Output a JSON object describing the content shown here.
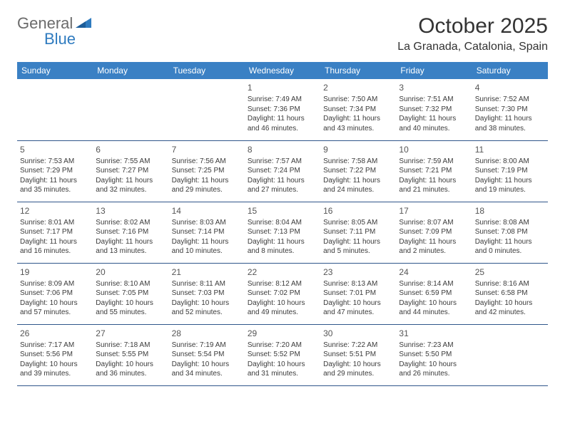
{
  "logo": {
    "text1": "General",
    "text2": "Blue"
  },
  "title": "October 2025",
  "subtitle": "La Granada, Catalonia, Spain",
  "colors": {
    "header_bg": "#3a80c4",
    "header_text": "#ffffff",
    "rule": "#2f568a",
    "logo_gray": "#6b6b6b",
    "logo_blue": "#2f7bbf",
    "body_text": "#3b3b3b"
  },
  "dow": [
    "Sunday",
    "Monday",
    "Tuesday",
    "Wednesday",
    "Thursday",
    "Friday",
    "Saturday"
  ],
  "weeks": [
    [
      null,
      null,
      null,
      {
        "n": "1",
        "sr": "7:49 AM",
        "ss": "7:36 PM",
        "dl": "11 hours and 46 minutes."
      },
      {
        "n": "2",
        "sr": "7:50 AM",
        "ss": "7:34 PM",
        "dl": "11 hours and 43 minutes."
      },
      {
        "n": "3",
        "sr": "7:51 AM",
        "ss": "7:32 PM",
        "dl": "11 hours and 40 minutes."
      },
      {
        "n": "4",
        "sr": "7:52 AM",
        "ss": "7:30 PM",
        "dl": "11 hours and 38 minutes."
      }
    ],
    [
      {
        "n": "5",
        "sr": "7:53 AM",
        "ss": "7:29 PM",
        "dl": "11 hours and 35 minutes."
      },
      {
        "n": "6",
        "sr": "7:55 AM",
        "ss": "7:27 PM",
        "dl": "11 hours and 32 minutes."
      },
      {
        "n": "7",
        "sr": "7:56 AM",
        "ss": "7:25 PM",
        "dl": "11 hours and 29 minutes."
      },
      {
        "n": "8",
        "sr": "7:57 AM",
        "ss": "7:24 PM",
        "dl": "11 hours and 27 minutes."
      },
      {
        "n": "9",
        "sr": "7:58 AM",
        "ss": "7:22 PM",
        "dl": "11 hours and 24 minutes."
      },
      {
        "n": "10",
        "sr": "7:59 AM",
        "ss": "7:21 PM",
        "dl": "11 hours and 21 minutes."
      },
      {
        "n": "11",
        "sr": "8:00 AM",
        "ss": "7:19 PM",
        "dl": "11 hours and 19 minutes."
      }
    ],
    [
      {
        "n": "12",
        "sr": "8:01 AM",
        "ss": "7:17 PM",
        "dl": "11 hours and 16 minutes."
      },
      {
        "n": "13",
        "sr": "8:02 AM",
        "ss": "7:16 PM",
        "dl": "11 hours and 13 minutes."
      },
      {
        "n": "14",
        "sr": "8:03 AM",
        "ss": "7:14 PM",
        "dl": "11 hours and 10 minutes."
      },
      {
        "n": "15",
        "sr": "8:04 AM",
        "ss": "7:13 PM",
        "dl": "11 hours and 8 minutes."
      },
      {
        "n": "16",
        "sr": "8:05 AM",
        "ss": "7:11 PM",
        "dl": "11 hours and 5 minutes."
      },
      {
        "n": "17",
        "sr": "8:07 AM",
        "ss": "7:09 PM",
        "dl": "11 hours and 2 minutes."
      },
      {
        "n": "18",
        "sr": "8:08 AM",
        "ss": "7:08 PM",
        "dl": "11 hours and 0 minutes."
      }
    ],
    [
      {
        "n": "19",
        "sr": "8:09 AM",
        "ss": "7:06 PM",
        "dl": "10 hours and 57 minutes."
      },
      {
        "n": "20",
        "sr": "8:10 AM",
        "ss": "7:05 PM",
        "dl": "10 hours and 55 minutes."
      },
      {
        "n": "21",
        "sr": "8:11 AM",
        "ss": "7:03 PM",
        "dl": "10 hours and 52 minutes."
      },
      {
        "n": "22",
        "sr": "8:12 AM",
        "ss": "7:02 PM",
        "dl": "10 hours and 49 minutes."
      },
      {
        "n": "23",
        "sr": "8:13 AM",
        "ss": "7:01 PM",
        "dl": "10 hours and 47 minutes."
      },
      {
        "n": "24",
        "sr": "8:14 AM",
        "ss": "6:59 PM",
        "dl": "10 hours and 44 minutes."
      },
      {
        "n": "25",
        "sr": "8:16 AM",
        "ss": "6:58 PM",
        "dl": "10 hours and 42 minutes."
      }
    ],
    [
      {
        "n": "26",
        "sr": "7:17 AM",
        "ss": "5:56 PM",
        "dl": "10 hours and 39 minutes."
      },
      {
        "n": "27",
        "sr": "7:18 AM",
        "ss": "5:55 PM",
        "dl": "10 hours and 36 minutes."
      },
      {
        "n": "28",
        "sr": "7:19 AM",
        "ss": "5:54 PM",
        "dl": "10 hours and 34 minutes."
      },
      {
        "n": "29",
        "sr": "7:20 AM",
        "ss": "5:52 PM",
        "dl": "10 hours and 31 minutes."
      },
      {
        "n": "30",
        "sr": "7:22 AM",
        "ss": "5:51 PM",
        "dl": "10 hours and 29 minutes."
      },
      {
        "n": "31",
        "sr": "7:23 AM",
        "ss": "5:50 PM",
        "dl": "10 hours and 26 minutes."
      },
      null
    ]
  ],
  "labels": {
    "sunrise": "Sunrise: ",
    "sunset": "Sunset: ",
    "daylight": "Daylight: "
  }
}
